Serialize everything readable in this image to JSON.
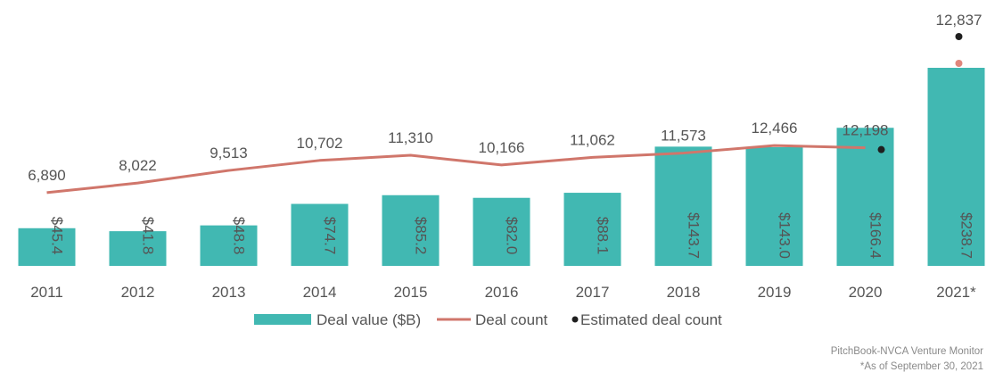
{
  "chart_data": {
    "type": "bar",
    "categories": [
      "2011",
      "2012",
      "2013",
      "2014",
      "2015",
      "2016",
      "2017",
      "2018",
      "2019",
      "2020",
      "2021*"
    ],
    "series": [
      {
        "name": "Deal value ($B)",
        "kind": "bar",
        "values": [
          45.4,
          41.8,
          48.8,
          74.7,
          85.2,
          82.0,
          88.1,
          143.7,
          143.0,
          166.4,
          238.7
        ],
        "labels": [
          "$45.4",
          "$41.8",
          "$48.8",
          "$74.7",
          "$85.2",
          "$82.0",
          "$88.1",
          "$143.7",
          "$143.0",
          "$166.4",
          "$238.7"
        ],
        "color": "#41b8b2"
      },
      {
        "name": "Deal count",
        "kind": "line",
        "values": [
          6890,
          8022,
          9513,
          10702,
          11310,
          10166,
          11062,
          11573,
          12466,
          12198,
          null
        ],
        "labels": [
          "6,890",
          "8,022",
          "9,513",
          "10,702",
          "11,310",
          "10,166",
          "11,062",
          "11,573",
          "12,466",
          "12,198",
          ""
        ],
        "color": "#d0766b"
      },
      {
        "name": "Estimated deal count",
        "kind": "point",
        "values": [
          null,
          null,
          null,
          null,
          null,
          null,
          null,
          null,
          null,
          12198,
          12837
        ],
        "labels": [
          "",
          "",
          "",
          "",
          "",
          "",
          "",
          "",
          "",
          "",
          "12,837"
        ],
        "color": "#1f1f1f"
      }
    ],
    "extra_point": {
      "category": "2021*",
      "value": 11185,
      "color": "#e0867c"
    },
    "legend": {
      "position": "bottom-center"
    },
    "grid": false
  },
  "footer": {
    "source": "PitchBook-NVCA Venture Monitor",
    "note": "*As of September 30, 2021"
  }
}
